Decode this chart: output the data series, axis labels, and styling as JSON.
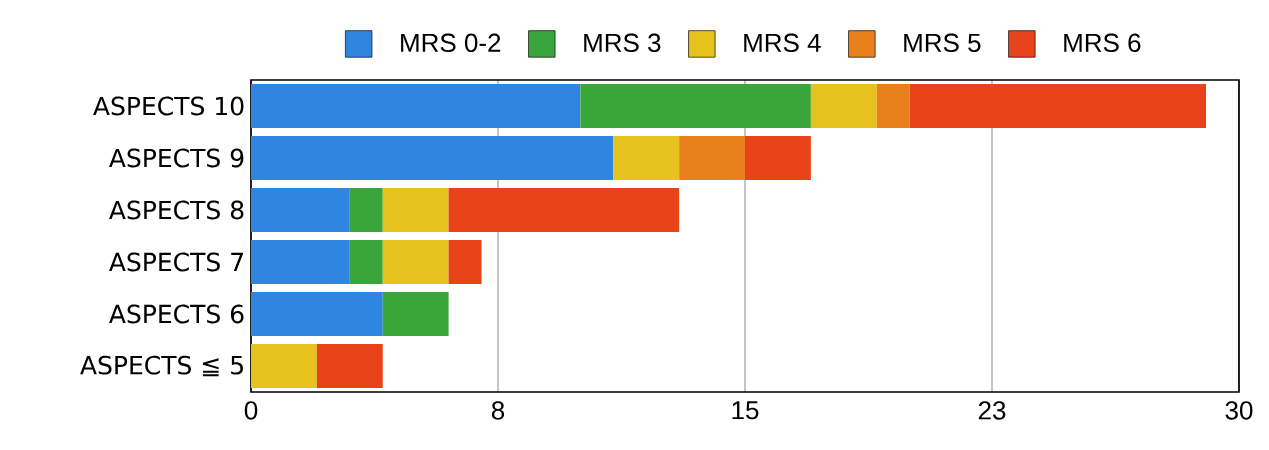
{
  "chart_data": {
    "type": "bar",
    "orientation": "horizontal",
    "stacked": true,
    "grid": "x",
    "legend": "top",
    "categories": [
      "ASPECTS 10",
      "ASPECTS 9",
      "ASPECTS 8",
      "ASPECTS 7",
      "ASPECTS 6",
      "ASPECTS ≦ 5"
    ],
    "xlim": [
      0,
      30
    ],
    "xticks": [
      0,
      {
        "value": 7.5,
        "label": "8"
      },
      15,
      {
        "value": 22.5,
        "label": "23"
      },
      30
    ],
    "series": [
      {
        "name": "MRS 0-2",
        "color": "#2f86e0",
        "values": [
          10,
          11,
          3,
          3,
          4,
          null
        ]
      },
      {
        "name": "MRS 3",
        "color": "#3aa53a",
        "values": [
          7,
          null,
          1,
          1,
          2,
          null
        ]
      },
      {
        "name": "MRS 4",
        "color": "#e6c21e",
        "values": [
          2,
          2,
          2,
          2,
          null,
          2
        ]
      },
      {
        "name": "MRS 5",
        "color": "#e8801c",
        "values": [
          1,
          2,
          null,
          null,
          null,
          null
        ]
      },
      {
        "name": "MRS 6",
        "color": "#e8431a",
        "values": [
          9,
          2,
          7,
          1,
          null,
          2
        ]
      }
    ]
  }
}
